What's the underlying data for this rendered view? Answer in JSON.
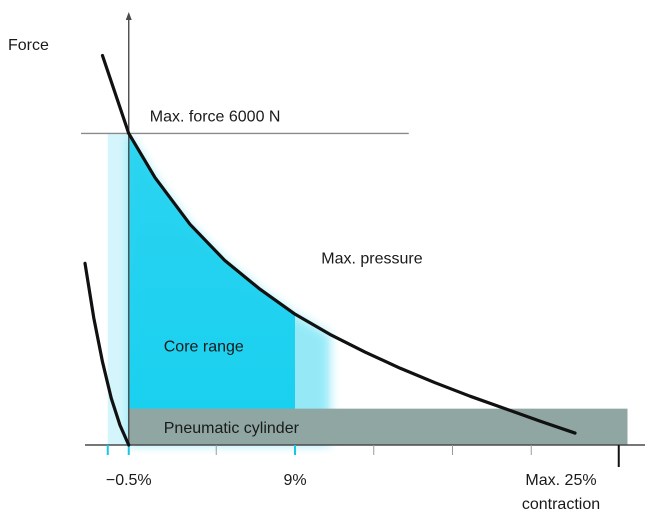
{
  "chart_data": {
    "type": "area",
    "ylabel": "Force",
    "x_tick_labels": [
      {
        "x": -0.5,
        "text": "−0.5%"
      },
      {
        "x": 9,
        "text": "9%"
      },
      {
        "x": 25,
        "text": "Max. 25%\ncontraction"
      }
    ],
    "x_ticks_minor": [
      -0.5,
      4.5,
      9,
      13.5,
      18,
      22.5
    ],
    "xlim": [
      -3,
      29
    ],
    "ylim": [
      0,
      7800
    ],
    "max_force_line": {
      "y": 6000,
      "label": "Max. force 6000 N"
    },
    "series": [
      {
        "name": "Max. pressure",
        "x": [
          -2,
          -0.5,
          1,
          3,
          5,
          7,
          9,
          11,
          13,
          15,
          17,
          19,
          21,
          23,
          25
        ],
        "y": [
          7500,
          6000,
          5150,
          4250,
          3550,
          3000,
          2520,
          2130,
          1790,
          1480,
          1200,
          940,
          700,
          460,
          230
        ]
      },
      {
        "name": "",
        "x": [
          -3,
          -2.5,
          -2,
          -1.5,
          -1,
          -0.5
        ],
        "y": [
          3500,
          2450,
          1600,
          900,
          380,
          0
        ]
      }
    ],
    "regions": [
      {
        "name": "Core range",
        "x_from": -0.5,
        "x_to": 9,
        "color": "#18d0ef"
      },
      {
        "name": "Pneumatic cylinder",
        "x_from": -0.5,
        "x_to": 28,
        "y_to": 700,
        "color": "#8fa6a3"
      }
    ],
    "annotations": [
      {
        "text": "Max. pressure",
        "x": 10.5,
        "y": 3500
      },
      {
        "text": "Core range",
        "x": 1.5,
        "y": 1800
      }
    ],
    "colors": {
      "core": "#18d0ef",
      "core_light": "#d4f5fb",
      "cylinder": "#8fa6a3",
      "curve": "#111111",
      "axis": "#4a4a4a",
      "tick_highlight": "#18c4e8"
    }
  }
}
